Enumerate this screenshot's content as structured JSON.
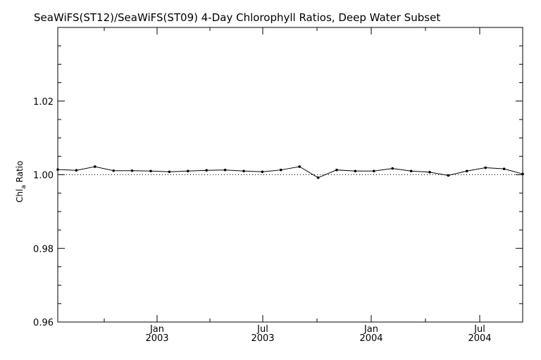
{
  "chart_data": {
    "type": "line",
    "title": "SeaWiFS(ST12)/SeaWiFS(ST09) 4-Day Chlorophyll Ratios, Deep Water Subset",
    "ylabel": {
      "main": "Chl",
      "sub": "a",
      "rest": " Ratio"
    },
    "ylim": [
      0.96,
      1.04
    ],
    "y_ticks": [
      0.96,
      0.98,
      1.0,
      1.02
    ],
    "y_tick_labels": [
      "0.96",
      "0.98",
      "1.00",
      "1.02"
    ],
    "x_ticks": [
      {
        "month": "Jan",
        "year": "2003"
      },
      {
        "month": "Jul",
        "year": "2003"
      },
      {
        "month": "Jan",
        "year": "2004"
      },
      {
        "month": "Jul",
        "year": "2004"
      }
    ],
    "reference_line": 1.0,
    "series": [
      {
        "values": [
          1.0014,
          1.0012,
          1.0022,
          1.0011,
          1.0011,
          1.001,
          1.0008,
          1.001,
          1.0012,
          1.0013,
          1.001,
          1.0008,
          1.0013,
          1.0022,
          0.9992,
          1.0013,
          1.001,
          1.001,
          1.0017,
          1.001,
          1.0007,
          0.9998,
          1.001,
          1.0019,
          1.0016,
          1.0002
        ]
      }
    ],
    "grid": false
  }
}
